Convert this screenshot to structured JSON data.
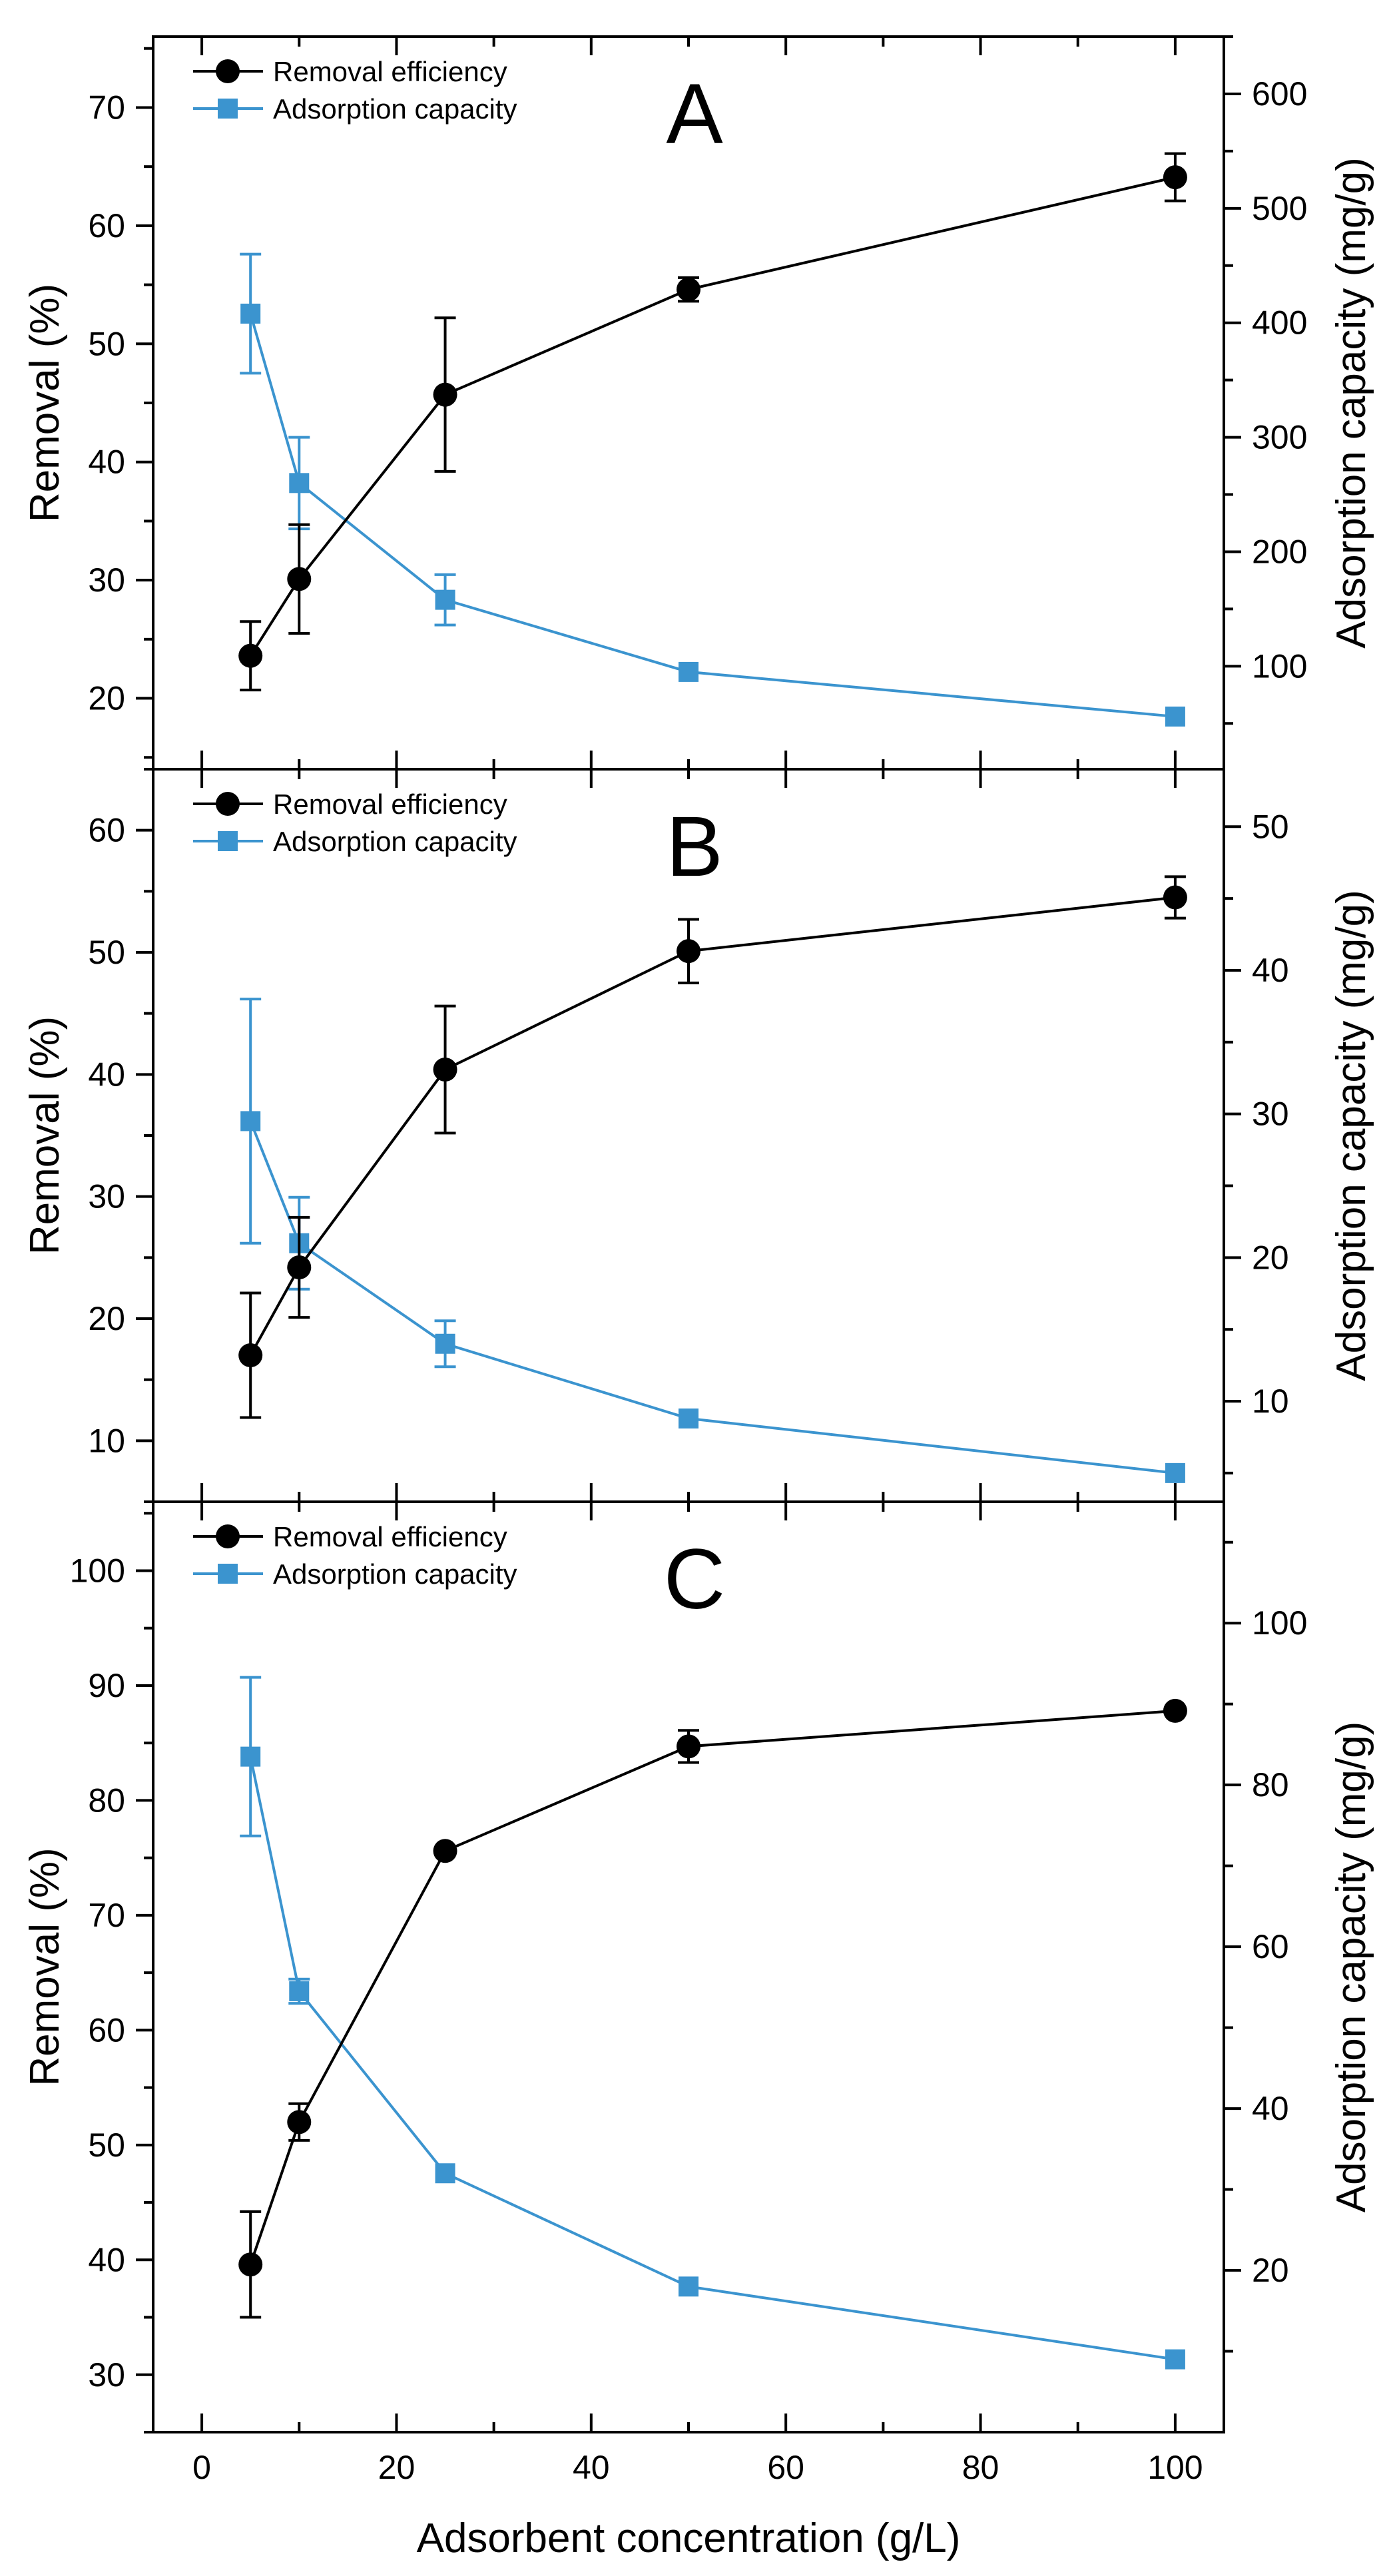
{
  "chart_data": {
    "type": "line",
    "x_label": "Adsorbent concentration (g/L)",
    "x_ticks": [
      0,
      20,
      40,
      60,
      80,
      100
    ],
    "x_range": [
      -5,
      105
    ],
    "colors": {
      "removal": "#000000",
      "capacity": "#3b94cf"
    },
    "legend_position": "top-left",
    "panels": [
      {
        "label": "A",
        "left_label": "Removal (%)",
        "right_label": "Adsorption capacity (mg/g)",
        "left_range": [
          14,
          76
        ],
        "right_range": [
          10,
          650
        ],
        "left_ticks": [
          20,
          30,
          40,
          50,
          60,
          70
        ],
        "right_ticks": [
          100,
          200,
          300,
          400,
          500,
          600
        ],
        "legend": [
          "Removal efficiency",
          "Adsorption capacity"
        ],
        "series": [
          {
            "name": "Removal efficiency",
            "axis": "left",
            "marker": "circle",
            "x": [
              5,
              10,
              25,
              50,
              100
            ],
            "y": [
              23.6,
              30.1,
              45.7,
              54.6,
              64.1
            ],
            "err": [
              2.9,
              4.6,
              6.5,
              1.0,
              2.0
            ]
          },
          {
            "name": "Adsorption capacity",
            "axis": "right",
            "marker": "square",
            "x": [
              5,
              10,
              25,
              50,
              100
            ],
            "y": [
              408,
              260,
              158,
              95,
              56
            ],
            "err": [
              52,
              40,
              22,
              0,
              0
            ]
          }
        ]
      },
      {
        "label": "B",
        "left_label": "Removal (%)",
        "right_label": "Adsorption capacity (mg/g)",
        "left_range": [
          5,
          65
        ],
        "right_range": [
          3,
          54
        ],
        "left_ticks": [
          10,
          20,
          30,
          40,
          50,
          60
        ],
        "right_ticks": [
          10,
          20,
          30,
          40,
          50
        ],
        "legend": [
          "Removal efficiency",
          "Adsorption capacity"
        ],
        "series": [
          {
            "name": "Removal efficiency",
            "axis": "left",
            "marker": "circle",
            "x": [
              5,
              10,
              25,
              50,
              100
            ],
            "y": [
              17.0,
              24.2,
              40.4,
              50.1,
              54.5
            ],
            "err": [
              5.1,
              4.1,
              5.2,
              2.6,
              1.7
            ]
          },
          {
            "name": "Adsorption capacity",
            "axis": "right",
            "marker": "square",
            "x": [
              5,
              10,
              25,
              50,
              100
            ],
            "y": [
              29.5,
              21.0,
              14.0,
              8.8,
              5.0
            ],
            "err": [
              8.5,
              3.2,
              1.6,
              0,
              0
            ]
          }
        ]
      },
      {
        "label": "C",
        "left_label": "Removal (%)",
        "right_label": "Adsorption capacity (mg/g)",
        "left_range": [
          25,
          106
        ],
        "right_range": [
          0,
          115
        ],
        "left_ticks": [
          30,
          40,
          50,
          60,
          70,
          80,
          90,
          100
        ],
        "right_ticks": [
          20,
          40,
          60,
          80,
          100
        ],
        "legend": [
          "Removal efficiency",
          "Adsorption capacity"
        ],
        "series": [
          {
            "name": "Removal efficiency",
            "axis": "left",
            "marker": "circle",
            "x": [
              5,
              10,
              25,
              50,
              100
            ],
            "y": [
              39.6,
              52.0,
              75.6,
              84.7,
              87.8
            ],
            "err": [
              4.6,
              1.6,
              0,
              1.4,
              0
            ]
          },
          {
            "name": "Adsorption capacity",
            "axis": "right",
            "marker": "square",
            "x": [
              5,
              10,
              25,
              50,
              100
            ],
            "y": [
              83.5,
              54.5,
              32.0,
              18.0,
              9.0
            ],
            "err": [
              9.8,
              1.5,
              0,
              0,
              0
            ]
          }
        ]
      }
    ]
  }
}
